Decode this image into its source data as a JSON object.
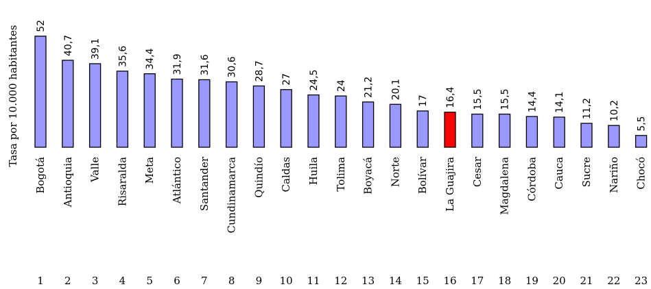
{
  "chart_data": {
    "type": "bar",
    "ylabel": "Tasa por 10.000 habitantes",
    "categories": [
      "Bogotá",
      "Antioquia",
      "Valle",
      "Risaralda",
      "Meta",
      "Atlántico",
      "Santander",
      "Cundinamarca",
      "Quindío",
      "Caldas",
      "Huila",
      "Tolima",
      "Boyacá",
      "Norte",
      "Bolívar",
      "La Guajira",
      "Cesar",
      "Magdalena",
      "Córdoba",
      "Cauca",
      "Sucre",
      "Nariño",
      "Chocó"
    ],
    "values": [
      52,
      40.7,
      39.1,
      35.6,
      34.4,
      31.9,
      31.6,
      30.6,
      28.7,
      27,
      24.5,
      24,
      21.2,
      20.1,
      17,
      16.4,
      15.5,
      15.5,
      14.4,
      14.1,
      11.2,
      10.2,
      5.5
    ],
    "value_labels": [
      "52",
      "40,7",
      "39,1",
      "35,6",
      "34,4",
      "31,9",
      "31,6",
      "30,6",
      "28,7",
      "27",
      "24,5",
      "24",
      "21,2",
      "20,1",
      "17",
      "16,4",
      "15,5",
      "15,5",
      "14,4",
      "14,1",
      "11,2",
      "10,2",
      "5,5"
    ],
    "ranks": [
      "1",
      "2",
      "3",
      "4",
      "5",
      "6",
      "7",
      "8",
      "9",
      "10",
      "11",
      "12",
      "13",
      "14",
      "15",
      "16",
      "17",
      "18",
      "19",
      "20",
      "21",
      "22",
      "23"
    ],
    "highlight_index": 15,
    "colors": {
      "bar": "#9999ff",
      "highlight": "#ff0000",
      "stroke": "#000000",
      "text": "#000000"
    }
  }
}
